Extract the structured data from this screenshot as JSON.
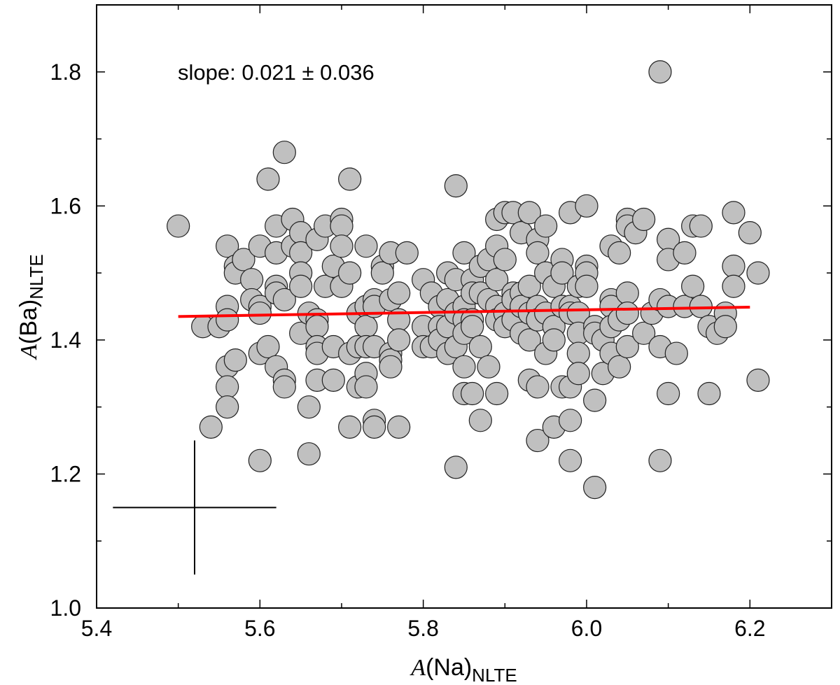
{
  "chart_data": {
    "type": "scatter",
    "xlabel": {
      "italic": "A",
      "main": "(Na)",
      "sub": "NLTE"
    },
    "ylabel": {
      "italic": "A",
      "main": "(Ba)",
      "sub": "NLTE"
    },
    "xlim": [
      5.4,
      6.3
    ],
    "ylim": [
      1.0,
      1.9
    ],
    "xticks": [
      5.4,
      5.6,
      5.8,
      6.0,
      6.2
    ],
    "xtick_labels": [
      "5.4",
      "5.6",
      "5.8",
      "6.0",
      "6.2"
    ],
    "yticks": [
      1.0,
      1.2,
      1.4,
      1.6,
      1.8
    ],
    "ytick_labels": [
      "1.0",
      "1.2",
      "1.4",
      "1.6",
      "1.8"
    ],
    "grid": false,
    "annotation": "slope: 0.021 ± 0.036",
    "marker_color": "#c0c0c0",
    "marker_edge": "#222222",
    "fit_line": {
      "color": "#ff0000",
      "x": [
        5.5,
        6.2
      ],
      "y": [
        1.435,
        1.449
      ]
    },
    "error_bar": {
      "x": 5.52,
      "y": 1.15,
      "xerr": 0.1,
      "yerr": 0.1
    },
    "points": [
      [
        5.5,
        1.57
      ],
      [
        5.53,
        1.42
      ],
      [
        5.54,
        1.27
      ],
      [
        5.55,
        1.42
      ],
      [
        5.56,
        1.54
      ],
      [
        5.56,
        1.45
      ],
      [
        5.56,
        1.43
      ],
      [
        5.56,
        1.36
      ],
      [
        5.56,
        1.33
      ],
      [
        5.56,
        1.3
      ],
      [
        5.57,
        1.51
      ],
      [
        5.57,
        1.5
      ],
      [
        5.57,
        1.37
      ],
      [
        5.58,
        1.52
      ],
      [
        5.59,
        1.49
      ],
      [
        5.59,
        1.46
      ],
      [
        5.6,
        1.54
      ],
      [
        5.6,
        1.45
      ],
      [
        5.6,
        1.44
      ],
      [
        5.6,
        1.38
      ],
      [
        5.6,
        1.22
      ],
      [
        5.61,
        1.64
      ],
      [
        5.61,
        1.39
      ],
      [
        5.62,
        1.57
      ],
      [
        5.62,
        1.53
      ],
      [
        5.62,
        1.48
      ],
      [
        5.62,
        1.47
      ],
      [
        5.62,
        1.36
      ],
      [
        5.63,
        1.68
      ],
      [
        5.63,
        1.46
      ],
      [
        5.63,
        1.34
      ],
      [
        5.63,
        1.33
      ],
      [
        5.64,
        1.58
      ],
      [
        5.64,
        1.54
      ],
      [
        5.65,
        1.56
      ],
      [
        5.65,
        1.53
      ],
      [
        5.65,
        1.5
      ],
      [
        5.65,
        1.48
      ],
      [
        5.65,
        1.41
      ],
      [
        5.66,
        1.44
      ],
      [
        5.66,
        1.3
      ],
      [
        5.66,
        1.23
      ],
      [
        5.67,
        1.55
      ],
      [
        5.67,
        1.43
      ],
      [
        5.67,
        1.42
      ],
      [
        5.67,
        1.39
      ],
      [
        5.67,
        1.38
      ],
      [
        5.67,
        1.34
      ],
      [
        5.68,
        1.57
      ],
      [
        5.68,
        1.48
      ],
      [
        5.69,
        1.51
      ],
      [
        5.69,
        1.39
      ],
      [
        5.69,
        1.34
      ],
      [
        5.7,
        1.58
      ],
      [
        5.7,
        1.57
      ],
      [
        5.7,
        1.54
      ],
      [
        5.7,
        1.48
      ],
      [
        5.71,
        1.64
      ],
      [
        5.71,
        1.5
      ],
      [
        5.71,
        1.38
      ],
      [
        5.71,
        1.27
      ],
      [
        5.72,
        1.44
      ],
      [
        5.72,
        1.39
      ],
      [
        5.72,
        1.33
      ],
      [
        5.73,
        1.54
      ],
      [
        5.73,
        1.45
      ],
      [
        5.73,
        1.42
      ],
      [
        5.73,
        1.39
      ],
      [
        5.73,
        1.35
      ],
      [
        5.73,
        1.33
      ],
      [
        5.74,
        1.46
      ],
      [
        5.74,
        1.45
      ],
      [
        5.74,
        1.39
      ],
      [
        5.74,
        1.28
      ],
      [
        5.74,
        1.27
      ],
      [
        5.75,
        1.51
      ],
      [
        5.75,
        1.5
      ],
      [
        5.76,
        1.53
      ],
      [
        5.76,
        1.46
      ],
      [
        5.76,
        1.38
      ],
      [
        5.76,
        1.37
      ],
      [
        5.76,
        1.36
      ],
      [
        5.77,
        1.47
      ],
      [
        5.77,
        1.43
      ],
      [
        5.77,
        1.4
      ],
      [
        5.77,
        1.27
      ],
      [
        5.78,
        1.53
      ],
      [
        5.8,
        1.49
      ],
      [
        5.8,
        1.42
      ],
      [
        5.8,
        1.39
      ],
      [
        5.81,
        1.47
      ],
      [
        5.81,
        1.39
      ],
      [
        5.82,
        1.45
      ],
      [
        5.82,
        1.42
      ],
      [
        5.82,
        1.4
      ],
      [
        5.83,
        1.5
      ],
      [
        5.83,
        1.46
      ],
      [
        5.83,
        1.42
      ],
      [
        5.83,
        1.38
      ],
      [
        5.84,
        1.63
      ],
      [
        5.84,
        1.49
      ],
      [
        5.84,
        1.44
      ],
      [
        5.84,
        1.39
      ],
      [
        5.84,
        1.21
      ],
      [
        5.85,
        1.53
      ],
      [
        5.85,
        1.45
      ],
      [
        5.85,
        1.43
      ],
      [
        5.85,
        1.41
      ],
      [
        5.85,
        1.36
      ],
      [
        5.85,
        1.32
      ],
      [
        5.86,
        1.49
      ],
      [
        5.86,
        1.47
      ],
      [
        5.86,
        1.43
      ],
      [
        5.86,
        1.42
      ],
      [
        5.86,
        1.32
      ],
      [
        5.87,
        1.51
      ],
      [
        5.87,
        1.47
      ],
      [
        5.87,
        1.39
      ],
      [
        5.87,
        1.28
      ],
      [
        5.88,
        1.52
      ],
      [
        5.88,
        1.46
      ],
      [
        5.88,
        1.36
      ],
      [
        5.89,
        1.58
      ],
      [
        5.89,
        1.54
      ],
      [
        5.89,
        1.49
      ],
      [
        5.89,
        1.45
      ],
      [
        5.89,
        1.43
      ],
      [
        5.89,
        1.32
      ],
      [
        5.9,
        1.59
      ],
      [
        5.9,
        1.52
      ],
      [
        5.9,
        1.44
      ],
      [
        5.9,
        1.42
      ],
      [
        5.91,
        1.59
      ],
      [
        5.91,
        1.47
      ],
      [
        5.91,
        1.46
      ],
      [
        5.91,
        1.43
      ],
      [
        5.92,
        1.56
      ],
      [
        5.92,
        1.47
      ],
      [
        5.92,
        1.45
      ],
      [
        5.92,
        1.41
      ],
      [
        5.93,
        1.59
      ],
      [
        5.93,
        1.48
      ],
      [
        5.93,
        1.44
      ],
      [
        5.93,
        1.4
      ],
      [
        5.93,
        1.34
      ],
      [
        5.94,
        1.55
      ],
      [
        5.94,
        1.53
      ],
      [
        5.94,
        1.45
      ],
      [
        5.94,
        1.43
      ],
      [
        5.94,
        1.33
      ],
      [
        5.94,
        1.25
      ],
      [
        5.95,
        1.57
      ],
      [
        5.95,
        1.5
      ],
      [
        5.95,
        1.44
      ],
      [
        5.95,
        1.38
      ],
      [
        5.96,
        1.48
      ],
      [
        5.96,
        1.42
      ],
      [
        5.96,
        1.4
      ],
      [
        5.96,
        1.27
      ],
      [
        5.97,
        1.52
      ],
      [
        5.97,
        1.5
      ],
      [
        5.97,
        1.45
      ],
      [
        5.97,
        1.33
      ],
      [
        5.98,
        1.59
      ],
      [
        5.98,
        1.45
      ],
      [
        5.98,
        1.44
      ],
      [
        5.98,
        1.33
      ],
      [
        5.98,
        1.28
      ],
      [
        5.98,
        1.22
      ],
      [
        5.99,
        1.48
      ],
      [
        5.99,
        1.44
      ],
      [
        5.99,
        1.41
      ],
      [
        5.99,
        1.38
      ],
      [
        5.99,
        1.35
      ],
      [
        6.0,
        1.6
      ],
      [
        6.0,
        1.51
      ],
      [
        6.0,
        1.5
      ],
      [
        6.0,
        1.48
      ],
      [
        6.01,
        1.42
      ],
      [
        6.01,
        1.41
      ],
      [
        6.01,
        1.31
      ],
      [
        6.01,
        1.18
      ],
      [
        6.02,
        1.4
      ],
      [
        6.02,
        1.35
      ],
      [
        6.03,
        1.54
      ],
      [
        6.03,
        1.46
      ],
      [
        6.03,
        1.45
      ],
      [
        6.03,
        1.42
      ],
      [
        6.03,
        1.38
      ],
      [
        6.04,
        1.53
      ],
      [
        6.04,
        1.43
      ],
      [
        6.04,
        1.36
      ],
      [
        6.05,
        1.58
      ],
      [
        6.05,
        1.57
      ],
      [
        6.05,
        1.47
      ],
      [
        6.05,
        1.44
      ],
      [
        6.05,
        1.39
      ],
      [
        6.06,
        1.56
      ],
      [
        6.07,
        1.58
      ],
      [
        6.07,
        1.41
      ],
      [
        6.08,
        1.44
      ],
      [
        6.09,
        1.8
      ],
      [
        6.09,
        1.46
      ],
      [
        6.09,
        1.39
      ],
      [
        6.09,
        1.22
      ],
      [
        6.1,
        1.55
      ],
      [
        6.1,
        1.52
      ],
      [
        6.1,
        1.45
      ],
      [
        6.1,
        1.32
      ],
      [
        6.11,
        1.38
      ],
      [
        6.12,
        1.53
      ],
      [
        6.12,
        1.45
      ],
      [
        6.13,
        1.57
      ],
      [
        6.13,
        1.48
      ],
      [
        6.14,
        1.57
      ],
      [
        6.14,
        1.45
      ],
      [
        6.15,
        1.42
      ],
      [
        6.15,
        1.32
      ],
      [
        6.16,
        1.41
      ],
      [
        6.17,
        1.44
      ],
      [
        6.17,
        1.42
      ],
      [
        6.18,
        1.59
      ],
      [
        6.18,
        1.51
      ],
      [
        6.18,
        1.48
      ],
      [
        6.2,
        1.56
      ],
      [
        6.21,
        1.5
      ],
      [
        6.21,
        1.34
      ]
    ]
  }
}
